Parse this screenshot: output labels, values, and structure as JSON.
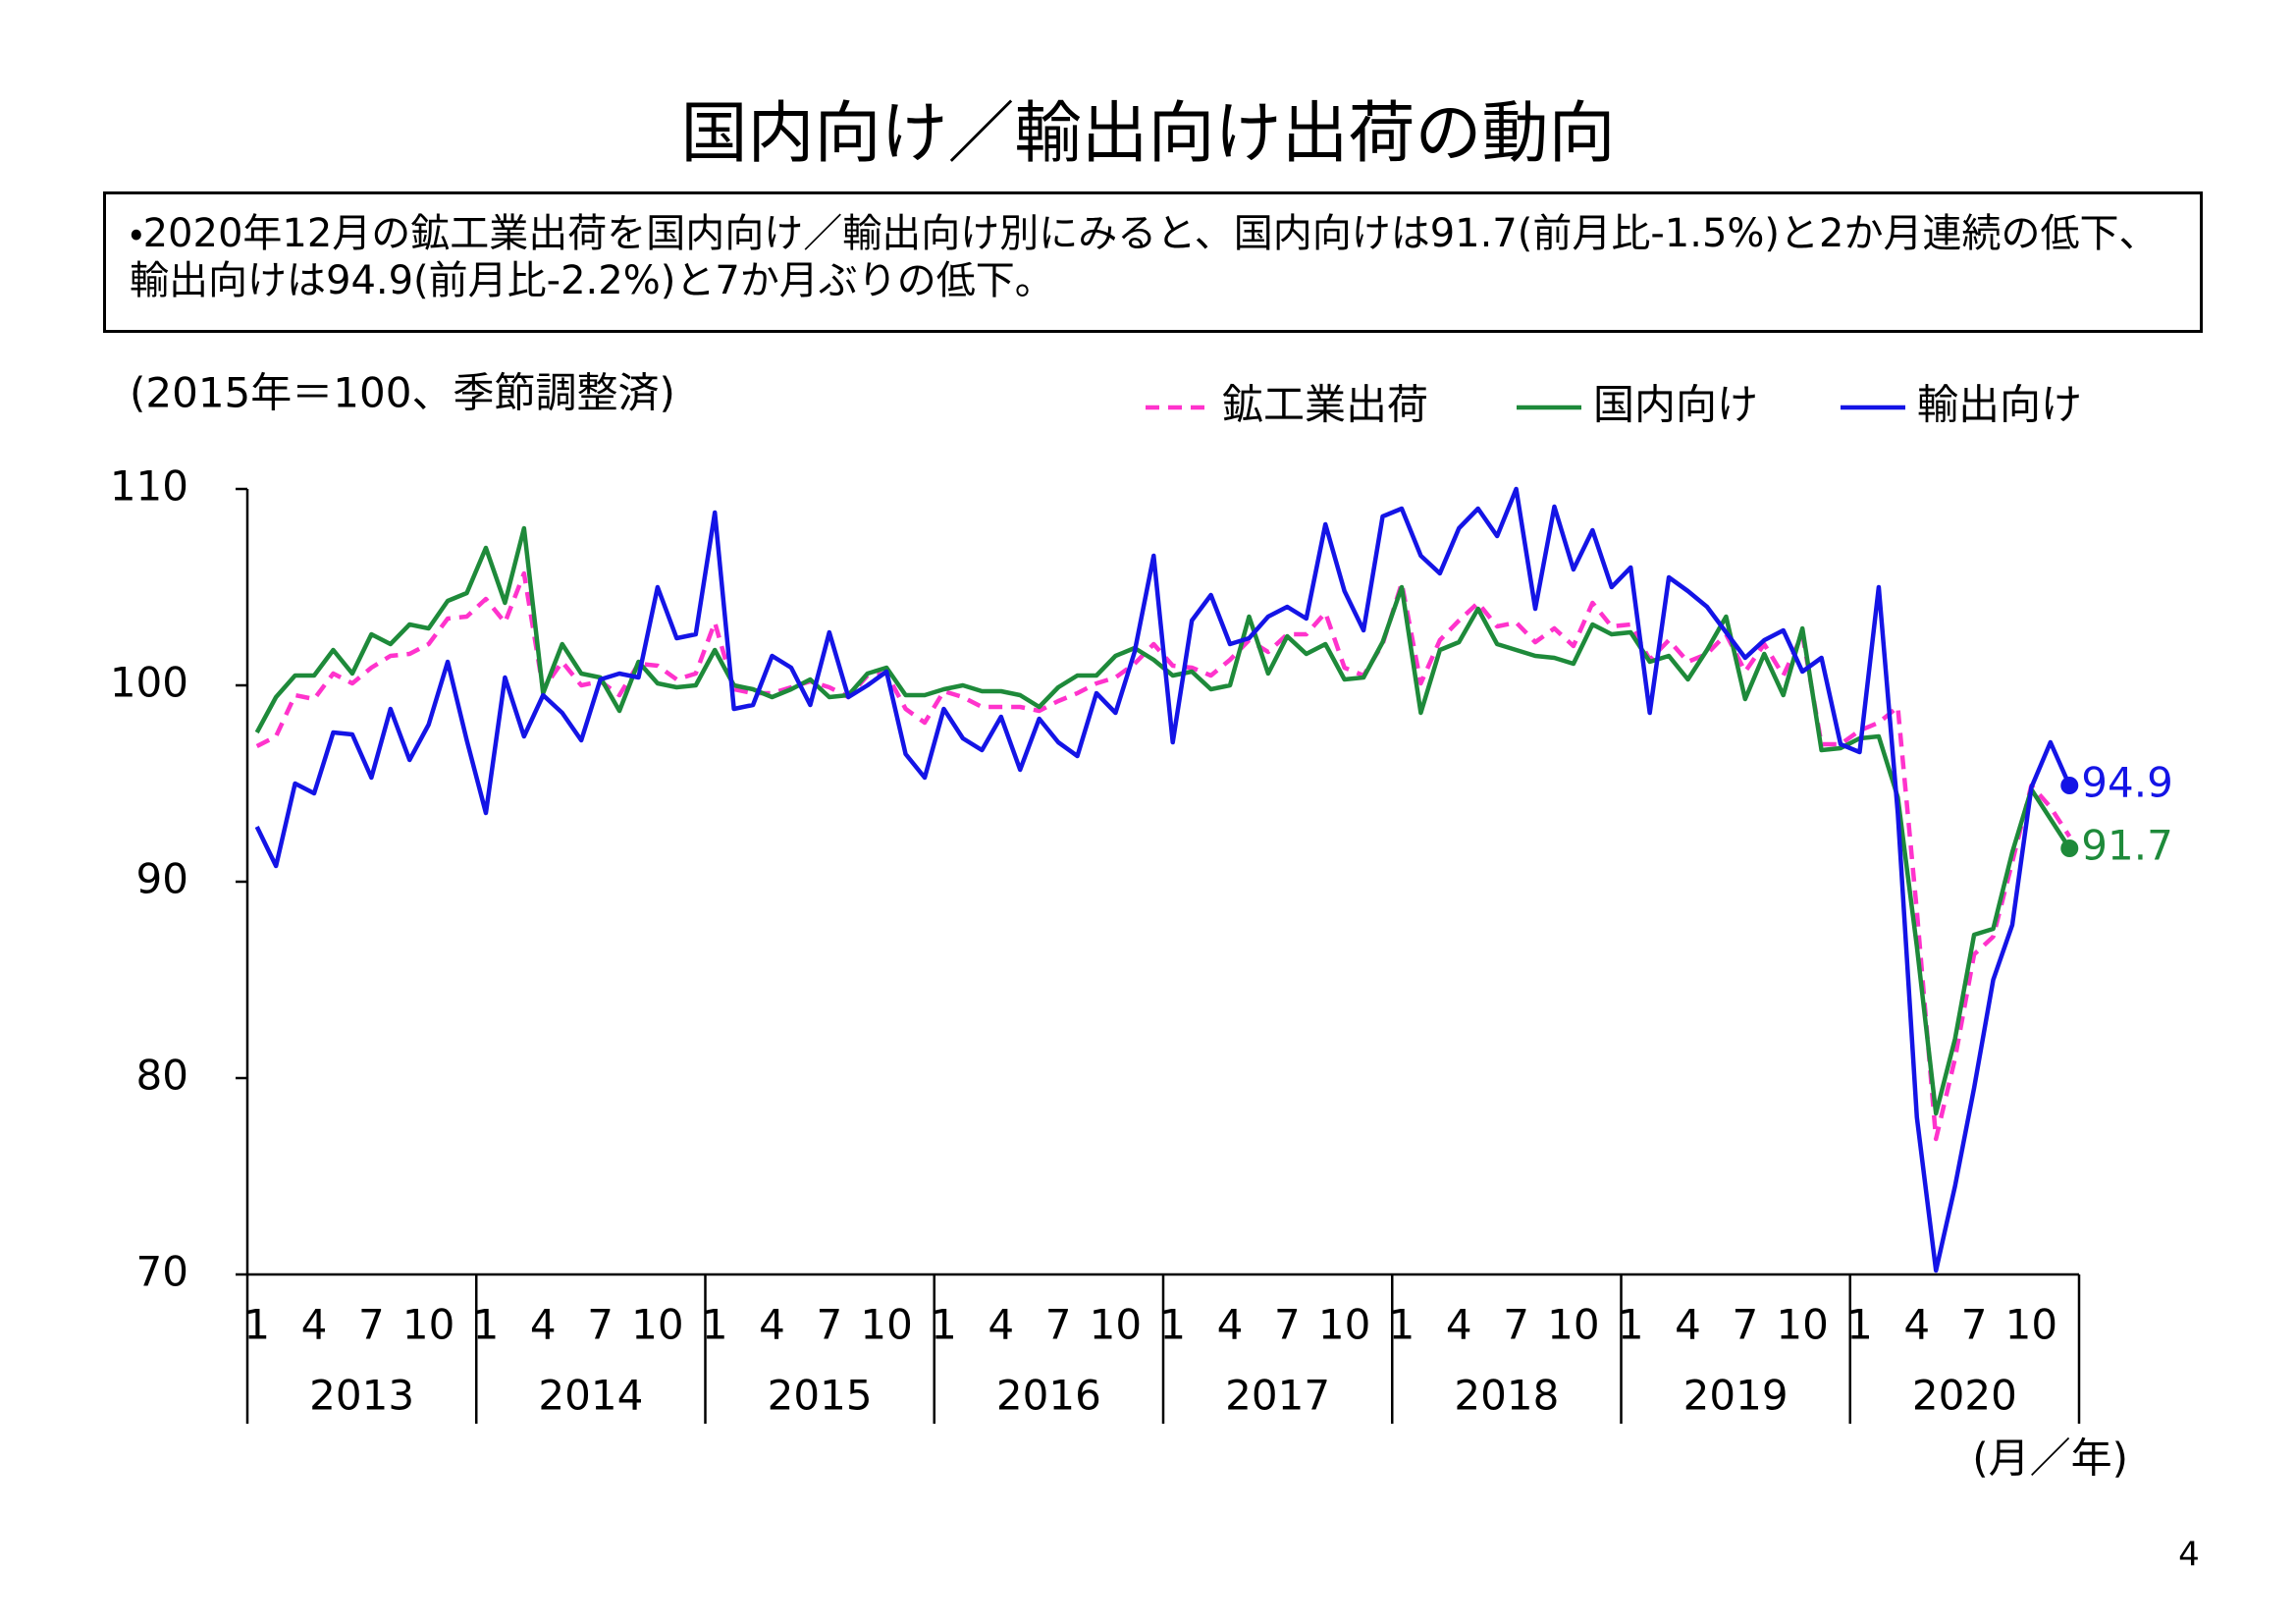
{
  "page_title": "国内向け／輸出向け出荷の動向",
  "summary": "・2020年12月の鉱工業出荷を国内向け／輸出向け別にみると、国内向けは91.7(前月比-1.5%)と2か月連続の低下、輸出向けは94.9(前月比-2.2%)と7か月ぶりの低下。",
  "page_number": "4",
  "chart_data": {
    "type": "line",
    "y_label": "(2015年＝100、季節調整済)",
    "x_label": "(月／年)",
    "categories": [
      "1",
      null,
      null,
      "4",
      null,
      null,
      "7",
      null,
      null,
      "10",
      null,
      null,
      "1",
      null,
      null,
      "4",
      null,
      null,
      "7",
      null,
      null,
      "10",
      null,
      null,
      "1",
      null,
      null,
      "4",
      null,
      null,
      "7",
      null,
      null,
      "10",
      null,
      null,
      "1",
      null,
      null,
      "4",
      null,
      null,
      "7",
      null,
      null,
      "10",
      null,
      null,
      "1",
      null,
      null,
      "4",
      null,
      null,
      "7",
      null,
      null,
      "10",
      null,
      null,
      "1",
      null,
      null,
      "4",
      null,
      null,
      "7",
      null,
      null,
      "10",
      null,
      null,
      "1",
      null,
      null,
      "4",
      null,
      null,
      "7",
      null,
      null,
      "10",
      null,
      null,
      "1",
      null,
      null,
      "4",
      null,
      null,
      "7",
      null,
      null,
      "10",
      null,
      null
    ],
    "years": [
      "2013",
      "2014",
      "2015",
      "2016",
      "2017",
      "2018",
      "2019",
      "2020"
    ],
    "ylim": [
      70,
      110
    ],
    "yticks": [
      70,
      80,
      90,
      100,
      110
    ],
    "series": [
      {
        "name": "鉱工業出荷",
        "color": "#ff33cc",
        "dashed": true,
        "values": [
          96.9,
          97.4,
          99.5,
          99.3,
          100.6,
          100.1,
          100.9,
          101.5,
          101.6,
          102.1,
          103.4,
          103.5,
          104.4,
          103.2,
          105.7,
          99.8,
          101.2,
          100.0,
          100.2,
          99.5,
          101.1,
          101.0,
          100.3,
          100.6,
          103.2,
          99.8,
          99.6,
          99.6,
          99.9,
          100.2,
          99.9,
          99.4,
          100.5,
          100.6,
          98.8,
          98.1,
          99.7,
          99.4,
          98.9,
          98.9,
          98.9,
          98.7,
          99.2,
          99.6,
          100.1,
          100.4,
          101.1,
          102.1,
          101.0,
          100.9,
          100.5,
          101.3,
          102.3,
          101.7,
          102.6,
          102.6,
          103.7,
          100.9,
          100.5,
          102.1,
          105.2,
          100.1,
          102.3,
          103.3,
          104.2,
          103.0,
          103.2,
          102.2,
          102.9,
          102.0,
          104.2,
          103.0,
          103.1,
          101.3,
          102.3,
          101.2,
          101.6,
          102.6,
          100.7,
          102.1,
          100.5,
          102.6,
          97.0,
          97.0,
          97.7,
          98.1,
          98.9,
          88.5,
          76.9,
          81.0,
          86.3,
          87.2,
          91.0,
          94.9,
          93.8,
          92.3
        ]
      },
      {
        "name": "国内向け",
        "color": "#1e8a3a",
        "end_label": "91.7",
        "values": [
          97.6,
          99.4,
          100.5,
          100.5,
          101.8,
          100.6,
          102.6,
          102.1,
          103.1,
          102.9,
          104.3,
          104.7,
          107.0,
          104.2,
          108.0,
          99.6,
          102.1,
          100.6,
          100.4,
          98.7,
          101.2,
          100.1,
          99.9,
          100.0,
          101.8,
          100.0,
          99.8,
          99.4,
          99.8,
          100.3,
          99.4,
          99.5,
          100.6,
          100.9,
          99.5,
          99.5,
          99.8,
          100.0,
          99.7,
          99.7,
          99.5,
          98.9,
          99.9,
          100.5,
          100.5,
          101.5,
          101.9,
          101.3,
          100.5,
          100.7,
          99.8,
          100.0,
          103.5,
          100.6,
          102.5,
          101.6,
          102.1,
          100.3,
          100.4,
          102.2,
          105.0,
          98.6,
          101.8,
          102.2,
          103.9,
          102.1,
          101.8,
          101.5,
          101.4,
          101.1,
          103.1,
          102.6,
          102.7,
          101.2,
          101.5,
          100.3,
          101.8,
          103.5,
          99.3,
          101.6,
          99.5,
          102.9,
          96.7,
          96.8,
          97.3,
          97.4,
          94.3,
          86.7,
          78.2,
          82.0,
          87.3,
          87.6,
          91.5,
          94.7,
          93.2,
          91.7
        ]
      },
      {
        "name": "輸出向け",
        "color": "#1414e6",
        "end_label": "94.9",
        "values": [
          92.8,
          90.8,
          95.0,
          94.5,
          97.6,
          97.5,
          95.3,
          98.8,
          96.2,
          98.0,
          101.2,
          97.2,
          93.5,
          100.4,
          97.4,
          99.5,
          98.6,
          97.2,
          100.3,
          100.6,
          100.4,
          105.0,
          102.4,
          102.6,
          108.8,
          98.8,
          99.0,
          101.5,
          100.9,
          99.0,
          102.7,
          99.4,
          100.0,
          100.7,
          96.5,
          95.3,
          98.8,
          97.3,
          96.7,
          98.4,
          95.7,
          98.3,
          97.1,
          96.4,
          99.6,
          98.6,
          101.7,
          106.6,
          97.1,
          103.3,
          104.6,
          102.1,
          102.4,
          103.5,
          104.0,
          103.4,
          108.2,
          104.8,
          102.8,
          108.6,
          109.0,
          106.6,
          105.7,
          108.0,
          109.0,
          107.6,
          110.0,
          103.9,
          109.1,
          105.9,
          107.9,
          105.0,
          106.0,
          98.6,
          105.5,
          104.8,
          104.0,
          102.7,
          101.4,
          102.3,
          102.8,
          100.7,
          101.4,
          97.0,
          96.6,
          105.0,
          93.5,
          78.0,
          70.2,
          74.5,
          79.5,
          85.0,
          87.8,
          94.8,
          97.1,
          94.9
        ]
      }
    ]
  }
}
